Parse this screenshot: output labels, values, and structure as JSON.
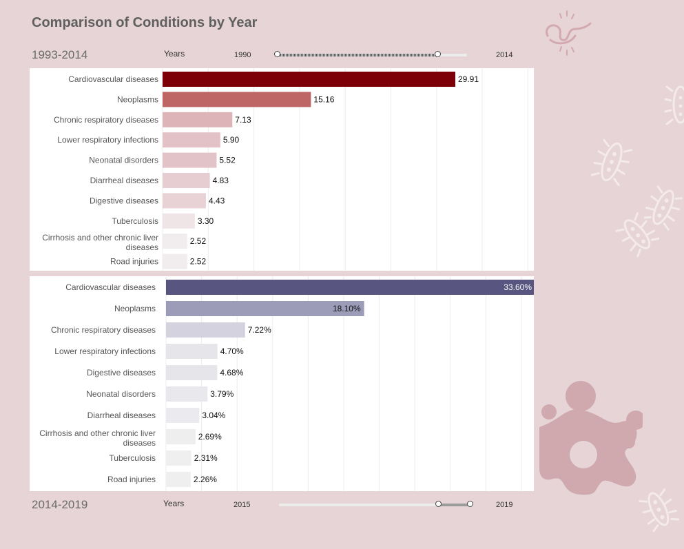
{
  "title": "Comparison of Conditions by Year",
  "top": {
    "range_label": "1993-2014",
    "years_label": "Years",
    "slider_min": "1990",
    "slider_max": "2014"
  },
  "bottom": {
    "range_label": "2014-2019",
    "years_label": "Years",
    "slider_min": "2015",
    "slider_max": "2019"
  },
  "colors": {
    "top_bar_scale": [
      "#7d0008",
      "#bd6665",
      "#ddb4b8",
      "#e2c2c6",
      "#e2c4c8",
      "#e6cdd1",
      "#e8d2d6",
      "#efe4e6",
      "#f1ecee",
      "#f1ecee"
    ],
    "bottom_bar_scale": [
      "#585680",
      "#9c9bb8",
      "#d4d2de",
      "#e6e5ea",
      "#e6e5ea",
      "#e9e8ec",
      "#ebeaee",
      "#eeeeef",
      "#efefef",
      "#efefef"
    ]
  },
  "chart_data": [
    {
      "type": "bar",
      "orientation": "horizontal",
      "categories": [
        "Cardiovascular diseases",
        "Neoplasms",
        "Chronic respiratory diseases",
        "Lower respiratory infections",
        "Neonatal disorders",
        "Diarrheal diseases",
        "Digestive diseases",
        "Tuberculosis",
        "Cirrhosis and other chronic liver diseases",
        "Road injuries"
      ],
      "values": [
        29.91,
        15.16,
        7.13,
        5.9,
        5.52,
        4.83,
        4.43,
        3.3,
        2.52,
        2.52
      ],
      "value_labels": [
        "29.91",
        "15.16",
        "7.13",
        "5.90",
        "5.52",
        "4.83",
        "4.43",
        "3.30",
        "2.52",
        "2.52"
      ],
      "xlim": [
        0,
        33.5
      ],
      "grid": true
    },
    {
      "type": "bar",
      "orientation": "horizontal",
      "categories": [
        "Cardiovascular diseases",
        "Neoplasms",
        "Chronic respiratory diseases",
        "Lower respiratory infections",
        "Digestive diseases",
        "Neonatal disorders",
        "Diarrheal diseases",
        "Cirrhosis and other chronic liver diseases",
        "Tuberculosis",
        "Road injuries"
      ],
      "values": [
        33.6,
        18.1,
        7.22,
        4.7,
        4.68,
        3.79,
        3.04,
        2.69,
        2.31,
        2.26
      ],
      "value_labels": [
        "33.60%",
        "18.10%",
        "7.22%",
        "4.70%",
        "4.68%",
        "3.79%",
        "3.04%",
        "2.69%",
        "2.31%",
        "2.26%"
      ],
      "xlim": [
        0,
        33.6
      ],
      "grid": true
    }
  ]
}
